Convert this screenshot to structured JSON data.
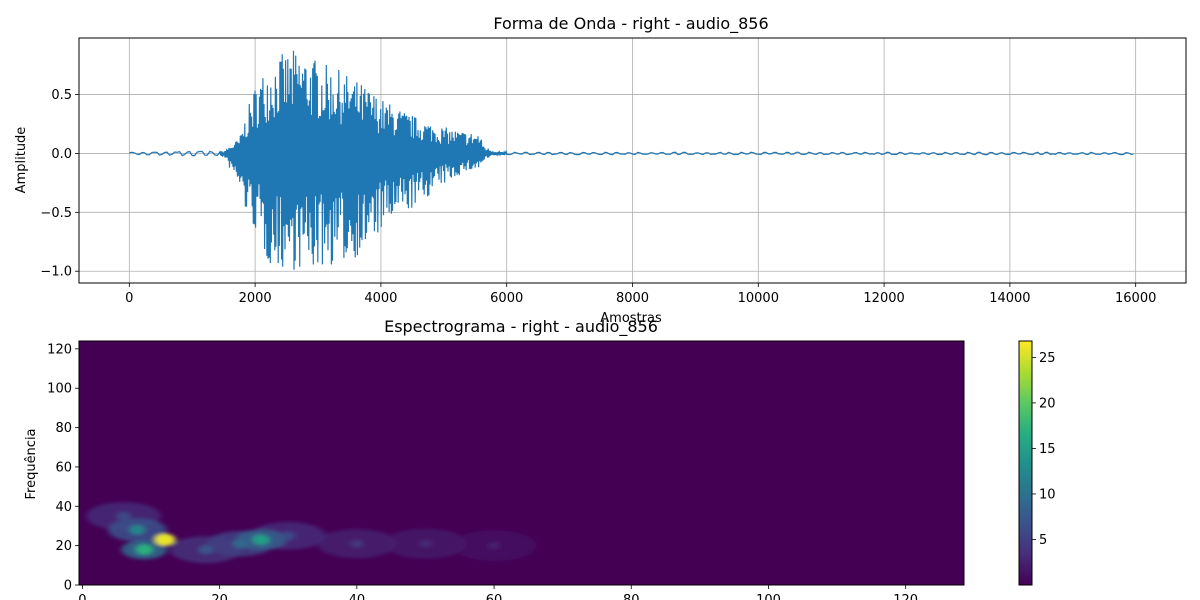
{
  "chart_data": [
    {
      "type": "line",
      "title": "Forma de Onda - right - audio_856",
      "xlabel": "Amostras",
      "ylabel": "Amplitude",
      "xlim": [
        -800,
        16800
      ],
      "ylim": [
        -1.1,
        0.98
      ],
      "x_ticks": [
        0,
        2000,
        4000,
        6000,
        8000,
        10000,
        12000,
        14000,
        16000
      ],
      "y_ticks": [
        -1.0,
        -0.5,
        0.0,
        0.5
      ],
      "x_tick_labels": [
        "0",
        "2000",
        "4000",
        "6000",
        "8000",
        "10000",
        "12000",
        "14000",
        "16000"
      ],
      "y_tick_labels": [
        "−1.0",
        "−0.5",
        "0.0",
        "0.5"
      ],
      "grid": true,
      "color": "#1f77b4",
      "series": [
        {
          "x": [
            0,
            1500,
            1750,
            1850,
            2000,
            2200,
            2400,
            2600,
            2750,
            2900,
            3000,
            3100,
            3300,
            3500,
            3800,
            4000,
            4300,
            4600,
            4900,
            5200,
            5400,
            5550,
            5650,
            5800,
            6000,
            8000,
            10000,
            12000,
            14000,
            16000
          ],
          "envelope_max": [
            0.01,
            0.02,
            0.13,
            0.32,
            0.58,
            0.76,
            0.84,
            0.88,
            0.87,
            0.82,
            0.8,
            0.76,
            0.72,
            0.66,
            0.56,
            0.47,
            0.38,
            0.3,
            0.24,
            0.2,
            0.18,
            0.18,
            0.06,
            0.02,
            0.01,
            0.01,
            0.01,
            0.01,
            0.01,
            0.01
          ],
          "envelope_min": [
            -0.01,
            -0.03,
            -0.29,
            -0.5,
            -0.66,
            -0.94,
            -0.99,
            -0.99,
            -1.0,
            -1.0,
            -0.99,
            -0.97,
            -0.95,
            -0.92,
            -0.82,
            -0.67,
            -0.54,
            -0.44,
            -0.3,
            -0.2,
            -0.15,
            -0.14,
            -0.06,
            -0.02,
            -0.01,
            -0.01,
            -0.01,
            -0.01,
            -0.01,
            -0.01
          ]
        }
      ]
    },
    {
      "type": "heatmap",
      "title": "Espectrograma - right - audio_856",
      "ylabel": "Frequência",
      "xlabel": "",
      "xlim": [
        -0.5,
        128.5
      ],
      "ylim": [
        0,
        124
      ],
      "x_ticks": [
        0,
        20,
        40,
        60,
        80,
        100,
        120
      ],
      "y_ticks": [
        0,
        20,
        40,
        60,
        80,
        100,
        120
      ],
      "colormap": "viridis",
      "colorbar": {
        "min": 0,
        "max": 26.8,
        "ticks": [
          5,
          10,
          15,
          20,
          25
        ]
      },
      "hotspots": [
        {
          "t": 12,
          "f": 23,
          "value": 26
        },
        {
          "t": 9,
          "f": 18,
          "value": 17
        },
        {
          "t": 8,
          "f": 28,
          "value": 12
        },
        {
          "t": 26,
          "f": 23,
          "value": 15
        },
        {
          "t": 23,
          "f": 21,
          "value": 9
        },
        {
          "t": 18,
          "f": 18,
          "value": 7
        },
        {
          "t": 30,
          "f": 25,
          "value": 6
        },
        {
          "t": 6,
          "f": 35,
          "value": 6
        },
        {
          "t": 40,
          "f": 21,
          "value": 4
        },
        {
          "t": 50,
          "f": 21,
          "value": 3
        },
        {
          "t": 60,
          "f": 20,
          "value": 2
        }
      ]
    }
  ]
}
